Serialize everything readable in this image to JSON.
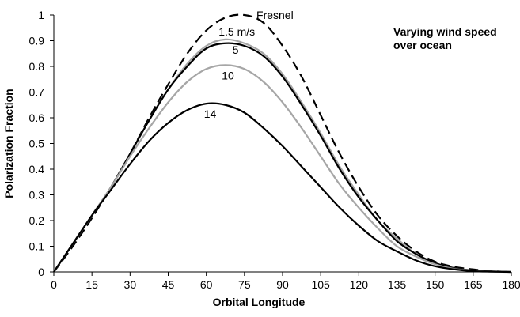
{
  "chart_data": {
    "type": "line",
    "title": "",
    "xlabel": "Orbital Longitude",
    "ylabel": "Polarization Fraction",
    "xlim": [
      0,
      180
    ],
    "ylim": [
      0,
      1
    ],
    "xticks": [
      0,
      15,
      30,
      45,
      60,
      75,
      90,
      105,
      120,
      135,
      150,
      165,
      180
    ],
    "yticks": [
      0,
      0.1,
      0.2,
      0.3,
      0.4,
      0.5,
      0.6,
      0.7,
      0.8,
      0.9,
      1
    ],
    "grid": false,
    "legend": "none",
    "annotation_text": [
      "Varying wind speed",
      "over ocean"
    ],
    "series": [
      {
        "name": "Fresnel",
        "color": "#000000",
        "style": "dashed",
        "points": [
          [
            0,
            0
          ],
          [
            7.5,
            0.1
          ],
          [
            15,
            0.21
          ],
          [
            22.5,
            0.33
          ],
          [
            30,
            0.46
          ],
          [
            37.5,
            0.6
          ],
          [
            45,
            0.73
          ],
          [
            52.5,
            0.85
          ],
          [
            60,
            0.94
          ],
          [
            67.5,
            0.99
          ],
          [
            75,
            1.0
          ],
          [
            82.5,
            0.97
          ],
          [
            90,
            0.88
          ],
          [
            97.5,
            0.76
          ],
          [
            105,
            0.61
          ],
          [
            112.5,
            0.46
          ],
          [
            120,
            0.33
          ],
          [
            127.5,
            0.22
          ],
          [
            135,
            0.14
          ],
          [
            142.5,
            0.08
          ],
          [
            150,
            0.04
          ],
          [
            157.5,
            0.02
          ],
          [
            165,
            0.01
          ],
          [
            172.5,
            0.003
          ],
          [
            180,
            0
          ]
        ]
      },
      {
        "name": "1.5 m/s",
        "color": "#a6a6a6",
        "style": "solid",
        "points": [
          [
            0,
            0
          ],
          [
            7.5,
            0.11
          ],
          [
            15,
            0.22
          ],
          [
            22.5,
            0.33
          ],
          [
            30,
            0.46
          ],
          [
            37.5,
            0.59
          ],
          [
            45,
            0.71
          ],
          [
            52.5,
            0.81
          ],
          [
            60,
            0.88
          ],
          [
            67.5,
            0.905
          ],
          [
            75,
            0.89
          ],
          [
            82.5,
            0.85
          ],
          [
            90,
            0.77
          ],
          [
            97.5,
            0.66
          ],
          [
            105,
            0.54
          ],
          [
            112.5,
            0.41
          ],
          [
            120,
            0.3
          ],
          [
            127.5,
            0.2
          ],
          [
            135,
            0.13
          ],
          [
            142.5,
            0.07
          ],
          [
            150,
            0.035
          ],
          [
            157.5,
            0.015
          ],
          [
            165,
            0.005
          ],
          [
            172.5,
            0.002
          ],
          [
            180,
            0
          ]
        ]
      },
      {
        "name": "5",
        "color": "#000000",
        "style": "solid",
        "points": [
          [
            0,
            0
          ],
          [
            7.5,
            0.11
          ],
          [
            15,
            0.22
          ],
          [
            22.5,
            0.33
          ],
          [
            30,
            0.46
          ],
          [
            37.5,
            0.59
          ],
          [
            45,
            0.71
          ],
          [
            52.5,
            0.8
          ],
          [
            60,
            0.87
          ],
          [
            67.5,
            0.89
          ],
          [
            75,
            0.88
          ],
          [
            82.5,
            0.84
          ],
          [
            90,
            0.76
          ],
          [
            97.5,
            0.65
          ],
          [
            105,
            0.53
          ],
          [
            112.5,
            0.4
          ],
          [
            120,
            0.29
          ],
          [
            127.5,
            0.2
          ],
          [
            135,
            0.12
          ],
          [
            142.5,
            0.07
          ],
          [
            150,
            0.035
          ],
          [
            157.5,
            0.015
          ],
          [
            165,
            0.005
          ],
          [
            172.5,
            0.002
          ],
          [
            180,
            0
          ]
        ]
      },
      {
        "name": "10",
        "color": "#a6a6a6",
        "style": "solid",
        "points": [
          [
            0,
            0
          ],
          [
            7.5,
            0.11
          ],
          [
            15,
            0.22
          ],
          [
            22.5,
            0.33
          ],
          [
            30,
            0.45
          ],
          [
            37.5,
            0.56
          ],
          [
            45,
            0.66
          ],
          [
            52.5,
            0.74
          ],
          [
            60,
            0.79
          ],
          [
            67.5,
            0.805
          ],
          [
            75,
            0.79
          ],
          [
            82.5,
            0.74
          ],
          [
            90,
            0.66
          ],
          [
            97.5,
            0.56
          ],
          [
            105,
            0.45
          ],
          [
            112.5,
            0.34
          ],
          [
            120,
            0.25
          ],
          [
            127.5,
            0.17
          ],
          [
            135,
            0.1
          ],
          [
            142.5,
            0.06
          ],
          [
            150,
            0.03
          ],
          [
            157.5,
            0.012
          ],
          [
            165,
            0.004
          ],
          [
            172.5,
            0.001
          ],
          [
            180,
            0
          ]
        ]
      },
      {
        "name": "14",
        "color": "#000000",
        "style": "solid",
        "points": [
          [
            0,
            0
          ],
          [
            7.5,
            0.11
          ],
          [
            15,
            0.22
          ],
          [
            22.5,
            0.32
          ],
          [
            30,
            0.42
          ],
          [
            37.5,
            0.51
          ],
          [
            45,
            0.58
          ],
          [
            52.5,
            0.63
          ],
          [
            60,
            0.655
          ],
          [
            67.5,
            0.65
          ],
          [
            75,
            0.62
          ],
          [
            82.5,
            0.56
          ],
          [
            90,
            0.49
          ],
          [
            97.5,
            0.41
          ],
          [
            105,
            0.33
          ],
          [
            112.5,
            0.25
          ],
          [
            120,
            0.18
          ],
          [
            127.5,
            0.12
          ],
          [
            135,
            0.08
          ],
          [
            142.5,
            0.045
          ],
          [
            150,
            0.022
          ],
          [
            157.5,
            0.01
          ],
          [
            165,
            0.003
          ],
          [
            172.5,
            0.001
          ],
          [
            180,
            0
          ]
        ]
      }
    ],
    "curve_labels": [
      {
        "text": "Fresnel",
        "x": 87,
        "y": 1.0
      },
      {
        "text": "1.5 m/s",
        "x": 72,
        "y": 0.935
      },
      {
        "text": "5",
        "x": 71.5,
        "y": 0.865
      },
      {
        "text": "10",
        "x": 68.5,
        "y": 0.765
      },
      {
        "text": "14",
        "x": 61.5,
        "y": 0.615
      }
    ]
  }
}
